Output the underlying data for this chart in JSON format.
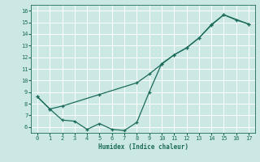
{
  "xlabel": "Humidex (Indice chaleur)",
  "bg_color": "#cce8e4",
  "line_color": "#1a6b5a",
  "grid_color": "#ffffff",
  "xlim": [
    -0.5,
    17.5
  ],
  "ylim": [
    5.5,
    16.5
  ],
  "xticks": [
    0,
    1,
    2,
    3,
    4,
    5,
    6,
    7,
    8,
    9,
    10,
    11,
    12,
    13,
    14,
    15,
    16,
    17
  ],
  "yticks": [
    6,
    7,
    8,
    9,
    10,
    11,
    12,
    13,
    14,
    15,
    16
  ],
  "line1_x_vals": [
    0,
    1,
    2,
    5,
    8,
    9,
    10,
    11,
    12,
    13,
    14,
    15,
    17
  ],
  "line1_y_vals": [
    8.6,
    7.55,
    7.8,
    8.8,
    9.8,
    10.55,
    11.4,
    12.2,
    12.8,
    13.65,
    14.8,
    15.65,
    14.85
  ],
  "line2_x_vals": [
    0,
    1,
    2,
    3,
    4,
    5,
    6,
    7,
    8,
    9,
    10,
    11,
    12,
    13,
    14,
    15,
    16,
    17
  ],
  "line2_y_vals": [
    8.6,
    7.55,
    6.6,
    6.5,
    5.8,
    6.3,
    5.8,
    5.7,
    6.4,
    9.0,
    11.45,
    12.2,
    12.8,
    13.65,
    14.75,
    15.65,
    15.2,
    14.85
  ]
}
